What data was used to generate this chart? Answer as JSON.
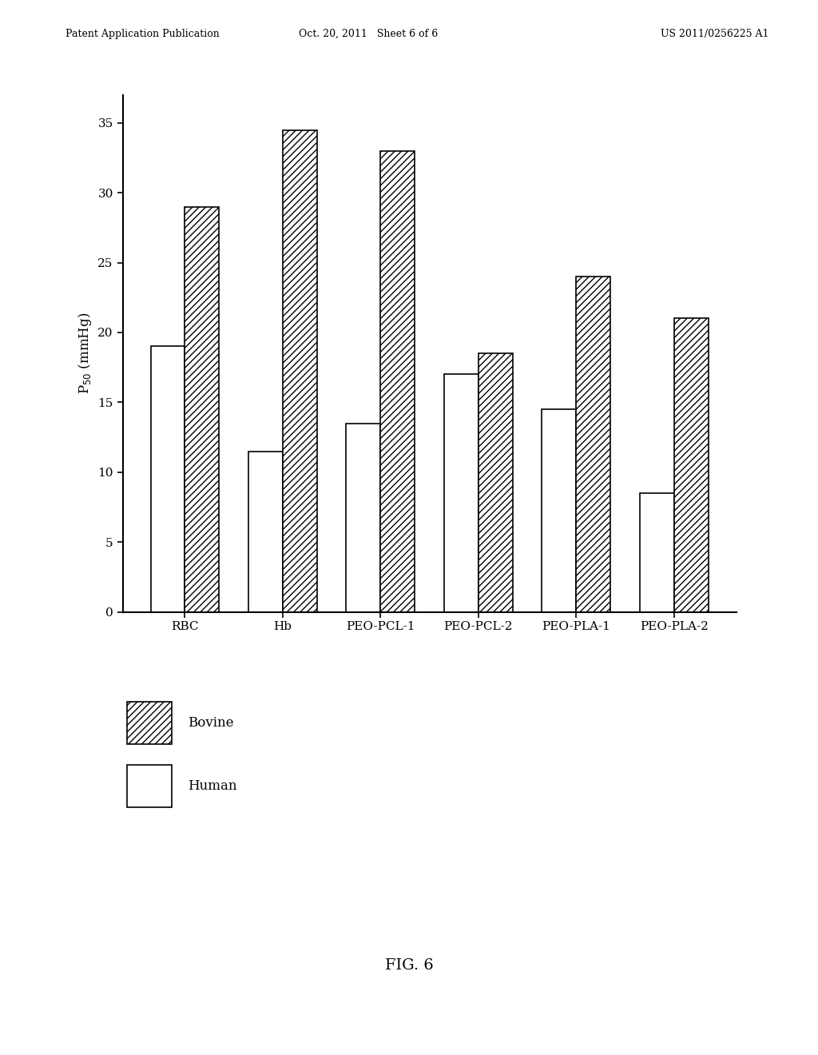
{
  "categories": [
    "RBC",
    "Hb",
    "PEO-PCL-1",
    "PEO-PCL-2",
    "PEO-PLA-1",
    "PEO-PLA-2"
  ],
  "human_values": [
    19.0,
    11.5,
    13.5,
    17.0,
    14.5,
    8.5
  ],
  "bovine_values": [
    29.0,
    34.5,
    33.0,
    18.5,
    24.0,
    21.0
  ],
  "ylabel": "P$_{50}$ (mmHg)",
  "ylim": [
    0,
    37
  ],
  "yticks": [
    0,
    5,
    10,
    15,
    20,
    25,
    30,
    35
  ],
  "bar_width": 0.35,
  "hatch_bovine": "////",
  "hatch_human": "",
  "bar_edge_color": "#000000",
  "bar_face_color_human": "#ffffff",
  "bar_face_color_bovine": "#ffffff",
  "legend_bovine": "Bovine",
  "legend_human": "Human",
  "figure_caption": "FIG. 6",
  "header_left": "Patent Application Publication",
  "header_center": "Oct. 20, 2011   Sheet 6 of 6",
  "header_right": "US 2011/0256225 A1",
  "background_color": "#ffffff",
  "axis_linewidth": 1.5,
  "bar_linewidth": 1.2
}
